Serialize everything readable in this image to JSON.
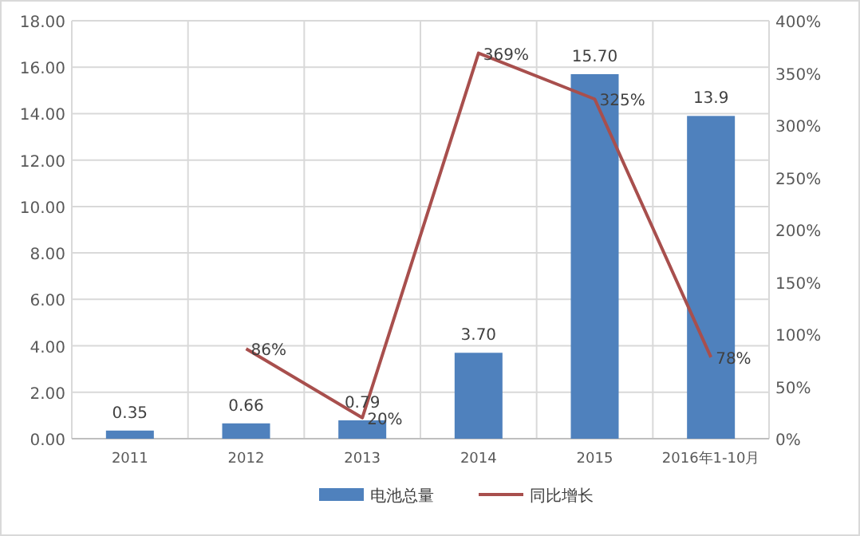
{
  "chart_data": {
    "type": "bar",
    "categories": [
      "2011",
      "2012",
      "2013",
      "2014",
      "2015",
      "2016年1-10月"
    ],
    "series": [
      {
        "name": "电池总量",
        "color": "#4f81bd",
        "values": [
          0.35,
          0.66,
          0.79,
          3.7,
          15.7,
          13.9
        ],
        "value_labels": [
          "0.35",
          "0.66",
          "0.79",
          "3.70",
          "15.70",
          "13.9"
        ]
      },
      {
        "name": "同比增长",
        "type": "line",
        "axis": "y2",
        "color": "#a84f4d",
        "values": [
          null,
          86,
          20,
          369,
          325,
          78
        ],
        "value_labels": [
          null,
          "86%",
          "20%",
          "369%",
          "325%",
          "78%"
        ]
      }
    ],
    "ylim": [
      0,
      18
    ],
    "yticks": [
      {
        "value": 0,
        "label": "0.00"
      },
      {
        "value": 2,
        "label": "2.00"
      },
      {
        "value": 4,
        "label": "4.00"
      },
      {
        "value": 6,
        "label": "6.00"
      },
      {
        "value": 8,
        "label": "8.00"
      },
      {
        "value": 10,
        "label": "10.00"
      },
      {
        "value": 12,
        "label": "12.00"
      },
      {
        "value": 14,
        "label": "14.00"
      },
      {
        "value": 16,
        "label": "16.00"
      },
      {
        "value": 18,
        "label": "18.00"
      }
    ],
    "y2lim": [
      0,
      400
    ],
    "y2ticks": [
      {
        "value": 0,
        "label": "0%"
      },
      {
        "value": 50,
        "label": "50%"
      },
      {
        "value": 100,
        "label": "100%"
      },
      {
        "value": 150,
        "label": "150%"
      },
      {
        "value": 200,
        "label": "200%"
      },
      {
        "value": 250,
        "label": "250%"
      },
      {
        "value": 300,
        "label": "300%"
      },
      {
        "value": 350,
        "label": "350%"
      },
      {
        "value": 400,
        "label": "400%"
      }
    ],
    "grid": true,
    "legend": "bottom"
  }
}
